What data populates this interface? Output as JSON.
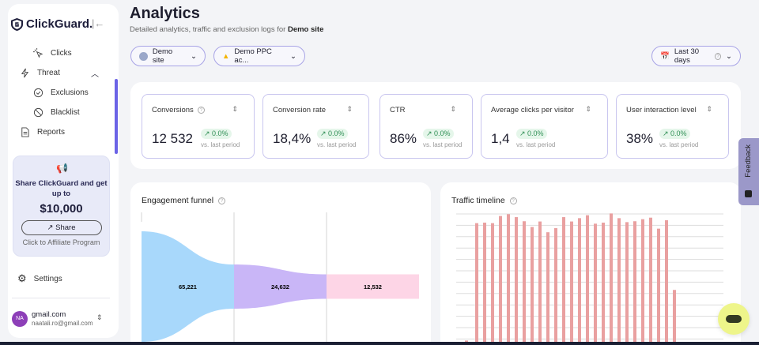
{
  "brand": {
    "name": "ClickGuard."
  },
  "sidebar": {
    "items": [
      {
        "label": "Clicks",
        "icon": "cursor-click-icon"
      },
      {
        "label": "Threat",
        "icon": "lightning-icon"
      },
      {
        "label": "Exclusions",
        "icon": "check-circle-icon"
      },
      {
        "label": "Blacklist",
        "icon": "ban-icon"
      },
      {
        "label": "Reports",
        "icon": "document-icon"
      }
    ],
    "promo": {
      "text": "Share ClickGuard and get up to",
      "amount": "$10,000",
      "button": "Share",
      "link": "Click to Affiliate Program"
    },
    "settings": "Settings",
    "user": {
      "initials": "NA",
      "name": "gmail.com",
      "email": "naatali.ro@gmail.com"
    }
  },
  "header": {
    "title": "Analytics",
    "subtitle": "Detailed analytics, traffic and exclusion logs for ",
    "site": "Demo site"
  },
  "filters": {
    "site": "Demo site",
    "account": "Demo PPC ac...",
    "date": "Last 30 days"
  },
  "stats": [
    {
      "label": "Conversions",
      "value": "12 532",
      "change": "0.0%",
      "vs": "vs. last period"
    },
    {
      "label": "Conversion rate",
      "value": "18,4%",
      "change": "0.0%",
      "vs": "vs. last period"
    },
    {
      "label": "CTR",
      "value": "86%",
      "change": "0.0%",
      "vs": "vs. last period"
    },
    {
      "label": "Average clicks per visitor",
      "value": "1,4",
      "change": "0.0%",
      "vs": "vs. last period"
    },
    {
      "label": "User interaction level",
      "value": "38%",
      "change": "0.0%",
      "vs": "vs. last period"
    }
  ],
  "feedback": "Feedback",
  "colors": {
    "accent": "#6b63e6",
    "bar": "#e9a0a0",
    "funnel": [
      "#a8d8fb",
      "#c9b6f7",
      "#fdd5e6"
    ],
    "chat": "#eef58a"
  },
  "chart_data": [
    {
      "type": "funnel",
      "title": "Engagement funnel",
      "values": [
        65221,
        24632,
        12532
      ],
      "labels": [
        "65,221",
        "24,632",
        "12,532"
      ]
    },
    {
      "type": "bar",
      "title": "Traffic timeline",
      "values": [
        1,
        92.8,
        93.2,
        92.8,
        98.4,
        99.8,
        97.5,
        94.3,
        89.8,
        94.1,
        85.7,
        88.9,
        97.5,
        94.1,
        96.7,
        99,
        92.4,
        93.2,
        100.4,
        96.7,
        93.6,
        94.3,
        95.9,
        97.1,
        88.5,
        95.1,
        40.6
      ],
      "grid": true
    }
  ]
}
